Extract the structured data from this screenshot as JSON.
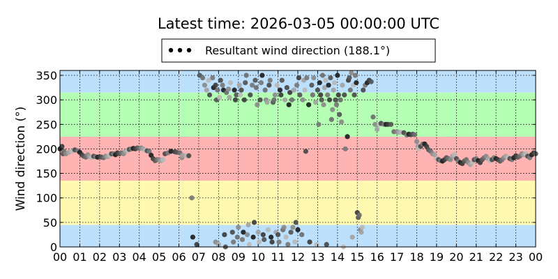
{
  "chart_data": {
    "type": "scatter",
    "title": "Latest time: 2026-03-05 00:00:00 UTC",
    "xlabel": "",
    "ylabel": "Wind direction (°)",
    "xlim": [
      0,
      24
    ],
    "ylim": [
      0,
      360
    ],
    "x_ticks": [
      0,
      1,
      2,
      3,
      4,
      5,
      6,
      7,
      8,
      9,
      10,
      11,
      12,
      13,
      14,
      15,
      16,
      17,
      18,
      19,
      20,
      21,
      22,
      23,
      24
    ],
    "x_tick_labels": [
      "00",
      "01",
      "02",
      "03",
      "04",
      "05",
      "06",
      "07",
      "08",
      "09",
      "10",
      "11",
      "12",
      "13",
      "14",
      "15",
      "16",
      "17",
      "18",
      "19",
      "20",
      "21",
      "22",
      "23",
      "00"
    ],
    "y_ticks": [
      0,
      50,
      100,
      150,
      200,
      250,
      300,
      350
    ],
    "grid": true,
    "legend_position": "top-center",
    "legend": [
      {
        "label": "Resultant wind direction (188.1°)",
        "color": "#000000"
      }
    ],
    "bands": [
      {
        "from": 0,
        "to": 45,
        "color": "#bde0fd"
      },
      {
        "from": 45,
        "to": 135,
        "color": "#fffab0"
      },
      {
        "from": 135,
        "to": 225,
        "color": "#ffb4b4"
      },
      {
        "from": 225,
        "to": 315,
        "color": "#b4ffb4"
      },
      {
        "from": 315,
        "to": 360,
        "color": "#bde0fd"
      }
    ],
    "series": [
      {
        "style": "scatter",
        "points": [
          [
            0.0,
            200
          ],
          [
            0.1,
            205
          ],
          [
            0.15,
            190
          ],
          [
            0.2,
            195
          ],
          [
            0.3,
            190
          ],
          [
            0.45,
            193
          ],
          [
            0.6,
            195
          ],
          [
            0.75,
            198
          ],
          [
            0.9,
            196
          ],
          [
            1.0,
            193
          ],
          [
            1.1,
            188
          ],
          [
            1.2,
            185
          ],
          [
            1.3,
            183
          ],
          [
            1.4,
            188
          ],
          [
            1.5,
            184
          ],
          [
            1.6,
            182
          ],
          [
            1.7,
            185
          ],
          [
            1.8,
            184
          ],
          [
            1.9,
            183
          ],
          [
            2.0,
            184
          ],
          [
            2.1,
            183
          ],
          [
            2.2,
            182
          ],
          [
            2.3,
            185
          ],
          [
            2.4,
            184
          ],
          [
            2.5,
            187
          ],
          [
            2.6,
            190
          ],
          [
            2.7,
            190
          ],
          [
            2.8,
            188
          ],
          [
            2.9,
            192
          ],
          [
            3.0,
            190
          ],
          [
            3.1,
            192
          ],
          [
            3.2,
            190
          ],
          [
            3.3,
            195
          ],
          [
            3.4,
            197
          ],
          [
            3.5,
            199
          ],
          [
            3.6,
            200
          ],
          [
            3.7,
            201
          ],
          [
            3.8,
            200
          ],
          [
            3.9,
            202
          ],
          [
            4.0,
            201
          ],
          [
            4.1,
            202
          ],
          [
            4.2,
            200
          ],
          [
            4.3,
            197
          ],
          [
            4.4,
            196
          ],
          [
            4.5,
            195
          ],
          [
            4.6,
            187
          ],
          [
            4.7,
            180
          ],
          [
            4.8,
            176
          ],
          [
            4.9,
            178
          ],
          [
            5.0,
            178
          ],
          [
            5.1,
            176
          ],
          [
            5.2,
            178
          ],
          [
            5.3,
            190
          ],
          [
            5.45,
            192
          ],
          [
            5.6,
            195
          ],
          [
            5.8,
            194
          ],
          [
            5.9,
            193
          ],
          [
            6.05,
            192
          ],
          [
            6.15,
            182
          ],
          [
            6.2,
            187
          ],
          [
            6.4,
            186
          ],
          [
            6.5,
            186
          ],
          [
            6.65,
            100
          ],
          [
            6.7,
            20
          ],
          [
            6.9,
            5
          ],
          [
            7.05,
            350
          ],
          [
            7.2,
            345
          ],
          [
            7.3,
            330
          ],
          [
            7.4,
            320
          ],
          [
            7.5,
            340
          ],
          [
            7.55,
            310
          ],
          [
            7.7,
            345
          ],
          [
            7.75,
            325
          ],
          [
            7.85,
            330
          ],
          [
            7.9,
            300
          ],
          [
            7.95,
            320
          ],
          [
            7.85,
            10
          ],
          [
            8.0,
            5
          ],
          [
            8.05,
            305
          ],
          [
            8.1,
            340
          ],
          [
            8.2,
            330
          ],
          [
            8.25,
            320
          ],
          [
            8.3,
            25
          ],
          [
            8.35,
            0
          ],
          [
            8.4,
            315
          ],
          [
            8.5,
            322
          ],
          [
            8.55,
            305
          ],
          [
            8.6,
            335
          ],
          [
            8.7,
            30
          ],
          [
            8.75,
            10
          ],
          [
            8.8,
            320
          ],
          [
            8.85,
            300
          ],
          [
            8.9,
            310
          ],
          [
            8.95,
            20
          ],
          [
            9.0,
            40
          ],
          [
            9.05,
            330
          ],
          [
            9.1,
            310
          ],
          [
            9.15,
            320
          ],
          [
            9.2,
            15
          ],
          [
            9.25,
            30
          ],
          [
            9.3,
            300
          ],
          [
            9.35,
            335
          ],
          [
            9.4,
            350
          ],
          [
            9.45,
            25
          ],
          [
            9.5,
            45
          ],
          [
            9.55,
            5
          ],
          [
            9.6,
            310
          ],
          [
            9.7,
            330
          ],
          [
            9.75,
            20
          ],
          [
            9.8,
            50
          ],
          [
            9.85,
            340
          ],
          [
            9.9,
            325
          ],
          [
            9.95,
            290
          ],
          [
            10.0,
            30
          ],
          [
            10.05,
            10
          ],
          [
            10.1,
            300
          ],
          [
            10.15,
            335
          ],
          [
            10.2,
            350
          ],
          [
            10.25,
            25
          ],
          [
            10.3,
            15
          ],
          [
            10.35,
            320
          ],
          [
            10.4,
            300
          ],
          [
            10.45,
            295
          ],
          [
            10.5,
            35
          ],
          [
            10.55,
            330
          ],
          [
            10.6,
            340
          ],
          [
            10.65,
            20
          ],
          [
            10.7,
            10
          ],
          [
            10.75,
            295
          ],
          [
            10.8,
            300
          ],
          [
            10.85,
            310
          ],
          [
            10.9,
            30
          ],
          [
            10.95,
            330
          ],
          [
            11.0,
            25
          ],
          [
            11.05,
            10
          ],
          [
            11.1,
            320
          ],
          [
            11.15,
            310
          ],
          [
            11.2,
            340
          ],
          [
            11.25,
            35
          ],
          [
            11.3,
            40
          ],
          [
            11.35,
            300
          ],
          [
            11.4,
            20
          ],
          [
            11.45,
            325
          ],
          [
            11.5,
            5
          ],
          [
            11.55,
            290
          ],
          [
            11.6,
            315
          ],
          [
            11.65,
            30
          ],
          [
            11.7,
            300
          ],
          [
            11.75,
            40
          ],
          [
            11.8,
            320
          ],
          [
            11.85,
            10
          ],
          [
            11.9,
            50
          ],
          [
            11.95,
            330
          ],
          [
            12.0,
            35
          ],
          [
            12.05,
            345
          ],
          [
            12.1,
            310
          ],
          [
            12.2,
            25
          ],
          [
            12.25,
            300
          ],
          [
            12.3,
            340
          ],
          [
            12.35,
            320
          ],
          [
            12.4,
            195
          ],
          [
            12.45,
            345
          ],
          [
            12.55,
            290
          ],
          [
            12.6,
            10
          ],
          [
            12.7,
            330
          ],
          [
            12.75,
            310
          ],
          [
            12.8,
            345
          ],
          [
            12.9,
            295
          ],
          [
            12.95,
            5
          ],
          [
            13.0,
            320
          ],
          [
            13.05,
            250
          ],
          [
            13.1,
            335
          ],
          [
            13.15,
            310
          ],
          [
            13.2,
            300
          ],
          [
            13.25,
            350
          ],
          [
            13.3,
            290
          ],
          [
            13.35,
            325
          ],
          [
            13.4,
            340
          ],
          [
            13.45,
            5
          ],
          [
            13.5,
            310
          ],
          [
            13.55,
            330
          ],
          [
            13.6,
            300
          ],
          [
            13.65,
            345
          ],
          [
            13.7,
            260
          ],
          [
            13.75,
            280
          ],
          [
            13.8,
            320
          ],
          [
            13.85,
            335
          ],
          [
            13.9,
            300
          ],
          [
            13.95,
            290
          ],
          [
            14.0,
            350
          ],
          [
            14.05,
            310
          ],
          [
            14.1,
            270
          ],
          [
            14.15,
            300
          ],
          [
            14.2,
            255
          ],
          [
            14.25,
            330
          ],
          [
            14.3,
            0
          ],
          [
            14.35,
            310
          ],
          [
            14.4,
            200
          ],
          [
            14.5,
            225
          ],
          [
            14.55,
            340
          ],
          [
            14.6,
            345
          ],
          [
            14.65,
            320
          ],
          [
            14.7,
            355
          ],
          [
            14.75,
            20
          ],
          [
            14.8,
            330
          ],
          [
            14.85,
            310
          ],
          [
            14.9,
            350
          ],
          [
            14.95,
            335
          ],
          [
            15.0,
            70
          ],
          [
            15.05,
            60
          ],
          [
            15.1,
            65
          ],
          [
            15.15,
            35
          ],
          [
            15.2,
            30
          ],
          [
            15.25,
            40
          ],
          [
            15.3,
            320
          ],
          [
            15.4,
            330
          ],
          [
            15.5,
            335
          ],
          [
            15.6,
            340
          ],
          [
            15.7,
            337
          ],
          [
            15.8,
            265
          ],
          [
            15.9,
            250
          ],
          [
            16.0,
            240
          ],
          [
            16.1,
            250
          ],
          [
            16.2,
            252
          ],
          [
            16.35,
            250
          ],
          [
            16.45,
            250
          ],
          [
            16.55,
            250
          ],
          [
            16.7,
            250
          ],
          [
            16.85,
            235
          ],
          [
            17.0,
            235
          ],
          [
            17.1,
            234
          ],
          [
            17.2,
            234
          ],
          [
            17.35,
            233
          ],
          [
            17.5,
            228
          ],
          [
            17.6,
            230
          ],
          [
            17.7,
            229
          ],
          [
            17.8,
            230
          ],
          [
            17.9,
            229
          ],
          [
            18.0,
            215
          ],
          [
            18.05,
            205
          ],
          [
            18.1,
            200
          ],
          [
            18.2,
            205
          ],
          [
            18.3,
            210
          ],
          [
            18.4,
            210
          ],
          [
            18.5,
            205
          ],
          [
            18.6,
            198
          ],
          [
            18.7,
            195
          ],
          [
            18.8,
            190
          ],
          [
            18.9,
            188
          ],
          [
            19.0,
            180
          ],
          [
            19.1,
            178
          ],
          [
            19.2,
            176
          ],
          [
            19.3,
            175
          ],
          [
            19.4,
            178
          ],
          [
            19.5,
            182
          ],
          [
            19.6,
            180
          ],
          [
            19.7,
            178
          ],
          [
            19.8,
            185
          ],
          [
            19.9,
            188
          ],
          [
            20.0,
            180
          ],
          [
            20.1,
            175
          ],
          [
            20.2,
            172
          ],
          [
            20.3,
            170
          ],
          [
            20.4,
            175
          ],
          [
            20.5,
            178
          ],
          [
            20.6,
            172
          ],
          [
            20.7,
            168
          ],
          [
            20.8,
            172
          ],
          [
            20.9,
            178
          ],
          [
            21.0,
            180
          ],
          [
            21.1,
            176
          ],
          [
            21.2,
            172
          ],
          [
            21.3,
            178
          ],
          [
            21.4,
            182
          ],
          [
            21.5,
            185
          ],
          [
            21.6,
            180
          ],
          [
            21.7,
            176
          ],
          [
            21.8,
            178
          ],
          [
            21.9,
            182
          ],
          [
            22.0,
            180
          ],
          [
            22.1,
            178
          ],
          [
            22.2,
            175
          ],
          [
            22.3,
            178
          ],
          [
            22.4,
            182
          ],
          [
            22.5,
            185
          ],
          [
            22.6,
            183
          ],
          [
            22.7,
            180
          ],
          [
            22.8,
            178
          ],
          [
            22.9,
            182
          ],
          [
            23.0,
            186
          ],
          [
            23.1,
            183
          ],
          [
            23.2,
            185
          ],
          [
            23.3,
            190
          ],
          [
            23.4,
            188
          ],
          [
            23.5,
            190
          ],
          [
            23.6,
            185
          ],
          [
            23.7,
            182
          ],
          [
            23.8,
            188
          ],
          [
            23.9,
            192
          ],
          [
            24.0,
            190
          ]
        ]
      }
    ]
  }
}
